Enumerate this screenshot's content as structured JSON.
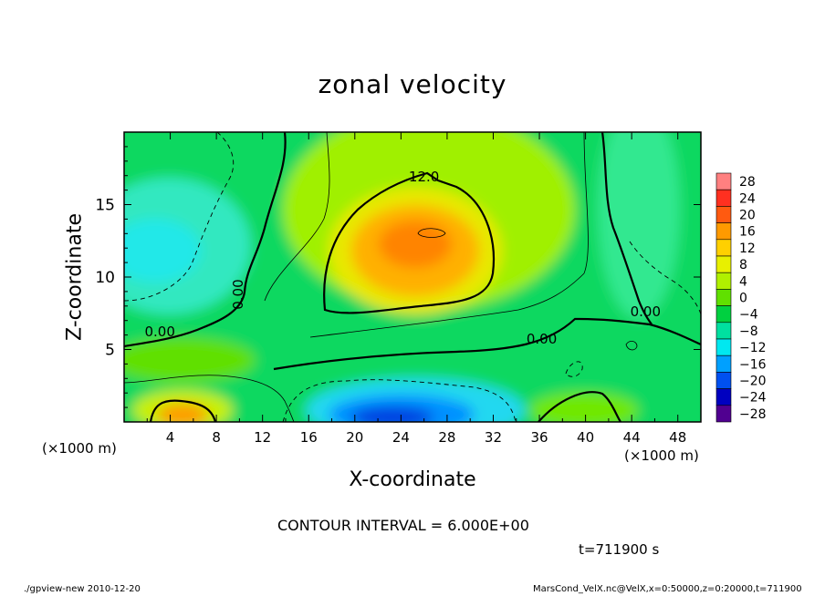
{
  "page": {
    "title": "zonal velocity",
    "contour_interval": "CONTOUR INTERVAL = 6.000E+00",
    "time": "t=711900 s",
    "footer_left": "./gpview-new   2010-12-20",
    "footer_right": "MarsCond_VelX.nc@VelX,x=0:50000,z=0:20000,t=711900"
  },
  "chart_data": {
    "type": "heatmap",
    "title": "zonal velocity",
    "xlabel": "X-coordinate",
    "ylabel": "Z-coordinate",
    "x_unit_left": "(×1000 m)",
    "x_unit_right": "(×1000 m)",
    "xlim": [
      0,
      50
    ],
    "ylim": [
      0,
      20
    ],
    "x_ticks": [
      4,
      8,
      12,
      16,
      20,
      24,
      28,
      32,
      36,
      40,
      44,
      48
    ],
    "y_ticks": [
      5,
      10,
      15
    ],
    "colorbar_levels": [
      28,
      24,
      20,
      16,
      12,
      8,
      4,
      0,
      -4,
      -8,
      -12,
      -16,
      -20,
      -24,
      -28
    ],
    "colorbar_colors": [
      "#ff8080",
      "#ff3020",
      "#ff5a10",
      "#ff9a00",
      "#ffd000",
      "#e8f000",
      "#b0f000",
      "#60e000",
      "#00d040",
      "#00e0a0",
      "#00e8f0",
      "#00a0ff",
      "#0050f0",
      "#0000c0",
      "#500090"
    ],
    "contour_labels": [
      {
        "text": "12.0",
        "x": 26,
        "z": 16.6
      },
      {
        "text": "0.00",
        "x": 10.3,
        "z": 8.8
      },
      {
        "text": "0.00",
        "x": 3.1,
        "z": 5.9
      },
      {
        "text": "0.00",
        "x": 36.2,
        "z": 5.4
      },
      {
        "text": "0.00",
        "x": 45.2,
        "z": 7.3
      }
    ],
    "features": [
      {
        "kind": "max",
        "x": 26,
        "z": 12.5,
        "value": 18
      },
      {
        "kind": "min",
        "x": 24,
        "z": 0.8,
        "value": -22
      },
      {
        "kind": "max",
        "x": 5.5,
        "z": 0.8,
        "value": 16
      },
      {
        "kind": "min",
        "x": 3.5,
        "z": 12,
        "value": -8
      }
    ]
  }
}
